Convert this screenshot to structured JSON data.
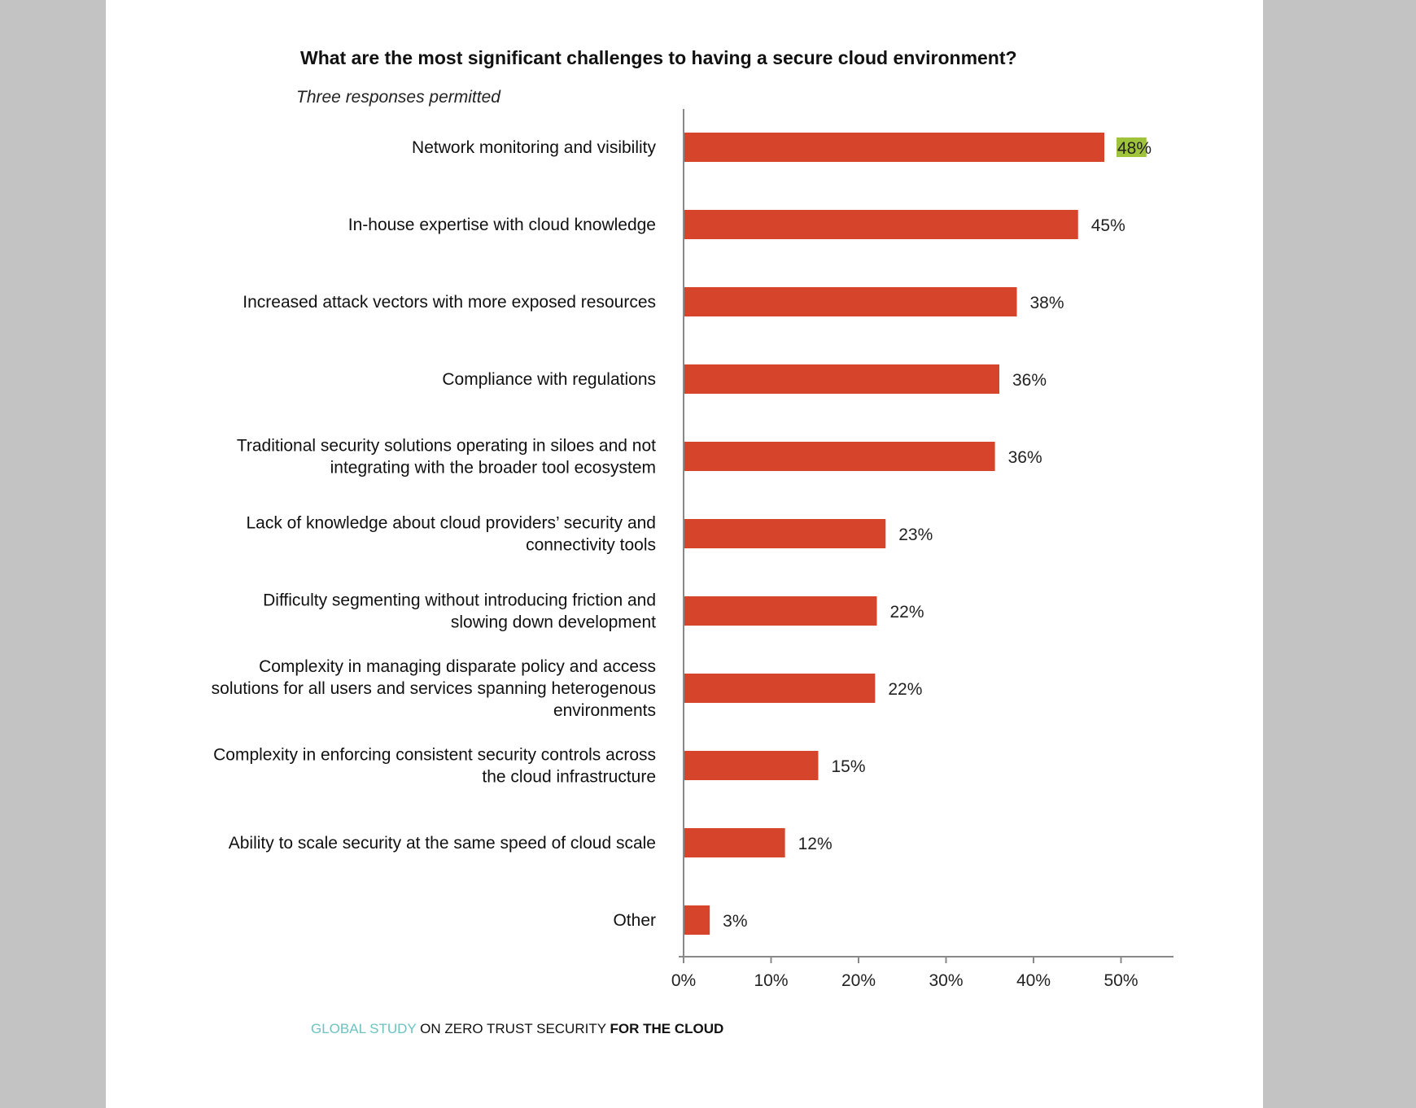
{
  "title": "What are the most significant challenges to having a secure cloud environment?",
  "subtitle": "Three responses permitted",
  "footer": {
    "part1": "GLOBAL STUDY",
    "part2": " ON ZERO TRUST SECURITY ",
    "part3": "FOR THE CLOUD"
  },
  "colors": {
    "bar": "#d6452b",
    "highlight": "#9fc33b",
    "axis": "#888888",
    "footer_accent": "#6cc3bf"
  },
  "chart_data": {
    "type": "bar",
    "orientation": "horizontal",
    "title": "What are the most significant challenges to having a secure cloud environment?",
    "subtitle": "Three responses permitted",
    "categories": [
      [
        "Network monitoring and visibility"
      ],
      [
        "In-house expertise with cloud knowledge"
      ],
      [
        "Increased attack vectors with more exposed resources"
      ],
      [
        "Compliance with regulations"
      ],
      [
        "Traditional security solutions operating in siloes and not",
        "integrating with the broader tool ecosystem"
      ],
      [
        "Lack of knowledge about cloud providers’ security and",
        "connectivity tools"
      ],
      [
        "Difficulty segmenting without introducing friction and",
        "slowing down development"
      ],
      [
        "Complexity in managing disparate policy and access",
        "solutions for all users and services spanning heterogenous",
        "environments"
      ],
      [
        "Complexity in enforcing consistent security controls across",
        "the cloud infrastructure"
      ],
      [
        "Ability to scale security at the same speed of cloud scale"
      ],
      [
        "Other"
      ]
    ],
    "values": [
      48,
      45,
      38,
      36,
      35.5,
      23,
      22,
      21.8,
      15.3,
      11.5,
      2.9
    ],
    "value_labels": [
      "48%",
      "45%",
      "38%",
      "36%",
      "36%",
      "23%",
      "22%",
      "22%",
      "15%",
      "12%",
      "3%"
    ],
    "highlighted_index": 0,
    "xlim": [
      0,
      56
    ],
    "xticks": [
      0,
      10,
      20,
      30,
      40,
      50
    ],
    "xtick_labels": [
      "0%",
      "10%",
      "20%",
      "30%",
      "40%",
      "50%"
    ]
  }
}
